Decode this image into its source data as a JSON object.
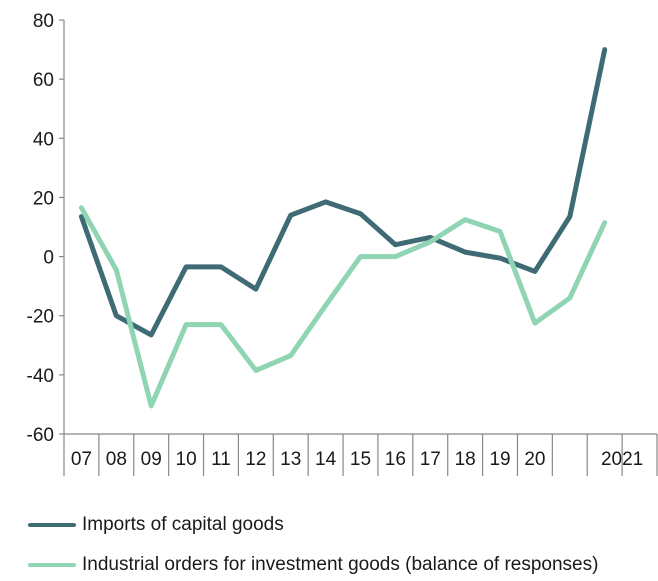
{
  "chart_data": {
    "type": "line",
    "title": "",
    "xlabel": "",
    "ylabel": "",
    "ylim": [
      -60,
      80
    ],
    "yticks": [
      80,
      60,
      40,
      20,
      0,
      -20,
      -40,
      -60
    ],
    "ytick_labels": [
      "80",
      "60",
      "40",
      "20",
      "0",
      "-20",
      "-40",
      "-60"
    ],
    "categories": [
      "07",
      "08",
      "09",
      "10",
      "11",
      "12",
      "13",
      "14",
      "15",
      "16",
      "17",
      "18",
      "19",
      "20",
      "",
      "2021",
      ""
    ],
    "grid": false,
    "legend_position": "bottom",
    "series": [
      {
        "name": "Imports of capital goods",
        "color": "#3f6b74",
        "values": [
          13.5,
          -20,
          -26.5,
          -3.5,
          -3.5,
          -11,
          14,
          18.5,
          14.5,
          4,
          6.5,
          1.5,
          -0.5,
          -5,
          13.5,
          70,
          null
        ]
      },
      {
        "name": "Industrial orders for investment goods (balance of responses)",
        "color": "#8fd4b3",
        "values": [
          16.5,
          -4.5,
          -50.5,
          -23,
          -23,
          -38.5,
          -33.5,
          -16.5,
          0,
          0,
          5,
          12.5,
          8.5,
          -22.5,
          -14,
          11.5,
          null
        ]
      }
    ]
  }
}
